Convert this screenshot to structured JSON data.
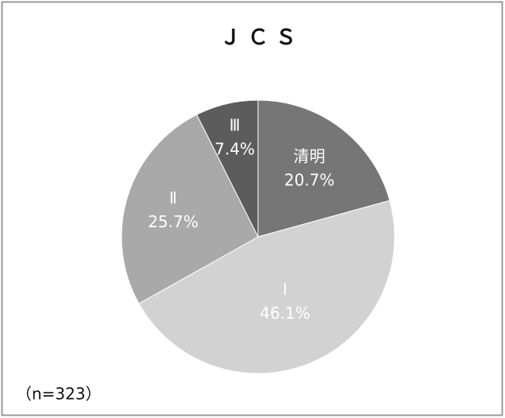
{
  "chart_data": {
    "type": "pie",
    "title": "Ｊ Ｃ Ｓ",
    "categories": [
      "清明",
      "Ⅰ",
      "Ⅱ",
      "Ⅲ"
    ],
    "values": [
      20.7,
      46.1,
      25.7,
      7.4
    ],
    "value_labels": [
      "20.7%",
      "46.1%",
      "25.7%",
      "7.4%"
    ],
    "colors": [
      "#767676",
      "#d2d2d2",
      "#a9a9a9",
      "#5c5c5c"
    ],
    "annotation": "（n=323）"
  }
}
